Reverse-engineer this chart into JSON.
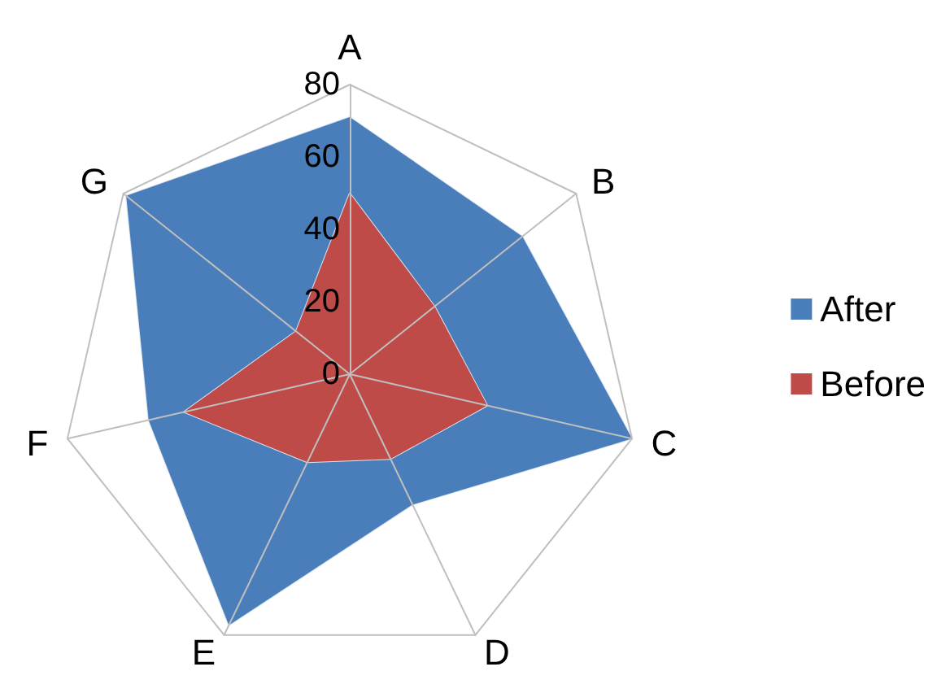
{
  "chart_data": {
    "type": "radar",
    "categories": [
      "A",
      "B",
      "C",
      "D",
      "E",
      "F",
      "G"
    ],
    "series": [
      {
        "name": "After",
        "color": "#4a7ebb",
        "values": [
          71,
          61,
          80,
          40,
          77,
          57,
          79
        ]
      },
      {
        "name": "Before",
        "color": "#be4b48",
        "values": [
          50,
          30,
          39,
          26,
          27,
          47,
          19
        ]
      }
    ],
    "ylim": [
      0,
      80
    ],
    "yticks": [
      0,
      20,
      40,
      60,
      80
    ],
    "grid": false,
    "legend": "right",
    "marker": "none"
  }
}
